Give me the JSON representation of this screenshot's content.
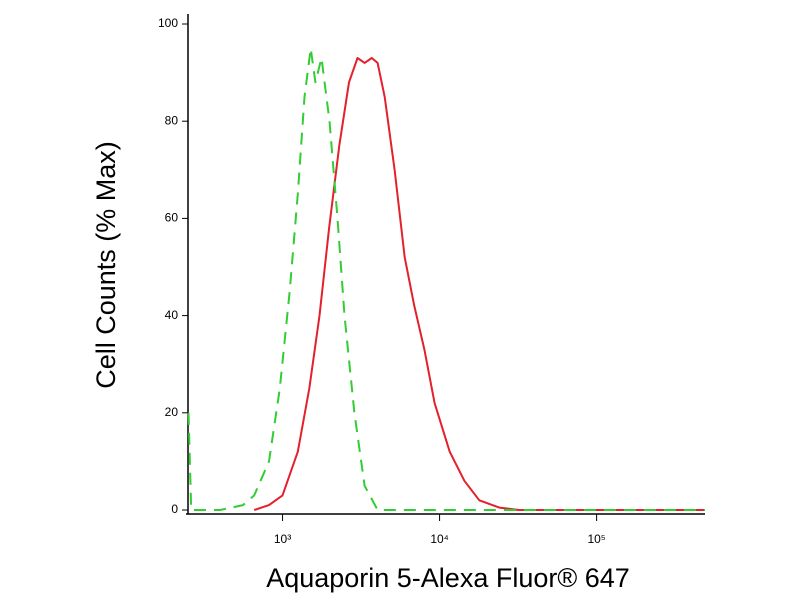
{
  "chart_data": {
    "type": "line",
    "x_label": "Aquaporin 5-Alexa Fluor® 647",
    "y_label": "Cell Counts (% Max)",
    "xscale": "log",
    "xlim": [
      250,
      490000
    ],
    "xticks": [
      {
        "value": 1000,
        "label": "10³"
      },
      {
        "value": 10000,
        "label": "10⁴"
      },
      {
        "value": 100000,
        "label": "10⁵"
      }
    ],
    "ylim": [
      0,
      100
    ],
    "yticks": [
      0,
      20,
      40,
      60,
      80,
      100
    ],
    "series": [
      {
        "color": "#e3202b",
        "dashed": false,
        "x": [
          660,
          820,
          1000,
          1250,
          1480,
          1720,
          1980,
          2300,
          2650,
          3000,
          3330,
          3700,
          4030,
          4470,
          5170,
          6000,
          6900,
          8000,
          9300,
          11600,
          14400,
          17900,
          24000,
          32000,
          100000,
          490000
        ],
        "values": [
          0,
          1,
          3,
          12,
          25,
          40,
          58,
          75,
          88,
          93,
          92,
          93,
          92,
          85,
          70,
          52,
          42,
          33,
          22,
          12,
          6,
          2,
          0.5,
          0,
          0,
          0
        ]
      },
      {
        "color": "#33cc33",
        "dashed": true,
        "x": [
          252,
          262,
          400,
          560,
          660,
          820,
          960,
          1110,
          1250,
          1380,
          1510,
          1620,
          1770,
          1990,
          2240,
          2480,
          2870,
          3330,
          4030,
          100000,
          490000
        ],
        "values": [
          20,
          0,
          0,
          1,
          3,
          10,
          25,
          45,
          65,
          85,
          95,
          88,
          93,
          80,
          60,
          40,
          20,
          5,
          0,
          0,
          0
        ]
      }
    ]
  }
}
